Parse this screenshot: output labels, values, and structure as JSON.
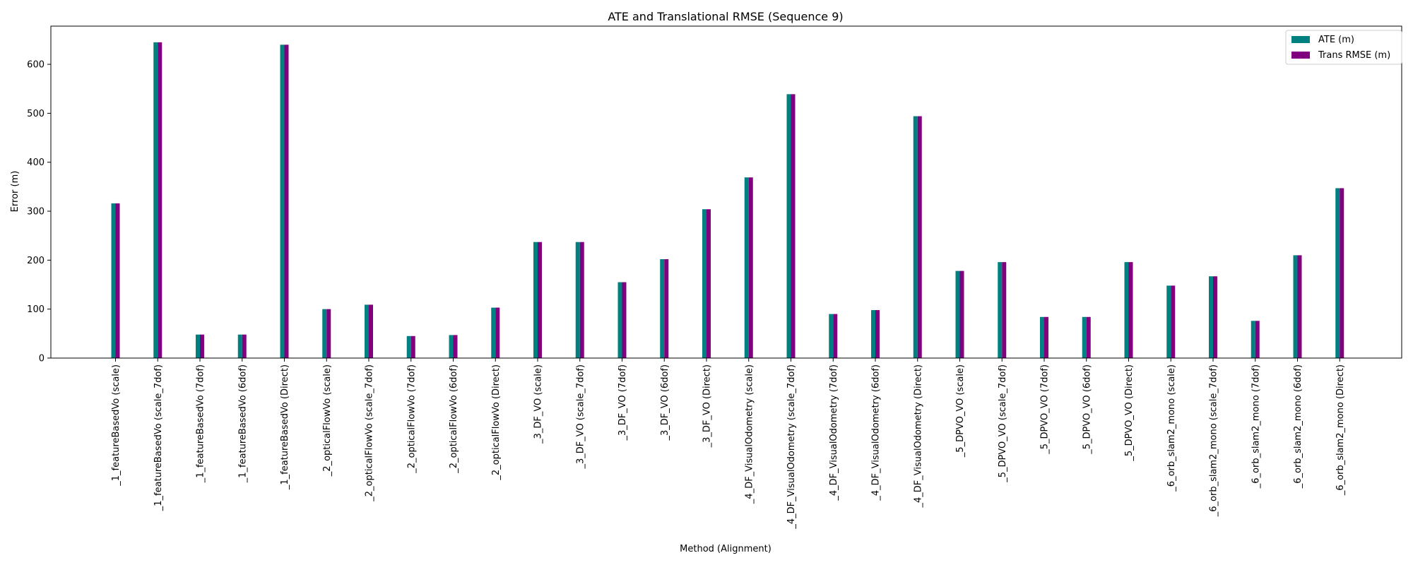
{
  "chart_data": {
    "type": "bar",
    "title": "ATE and Translational RMSE (Sequence 9)",
    "xlabel": "Method (Alignment)",
    "ylabel": "Error (m)",
    "ylim": [
      0,
      678
    ],
    "yticks": [
      0,
      100,
      200,
      300,
      400,
      500,
      600
    ],
    "grid": false,
    "legend_position": "top-right",
    "categories": [
      "_1_featureBasedVo (scale)",
      "_1_featureBasedVo (scale_7dof)",
      "_1_featureBasedVo (7dof)",
      "_1_featureBasedVo (6dof)",
      "_1_featureBasedVo (Direct)",
      "_2_opticalFlowVo (scale)",
      "_2_opticalFlowVo (scale_7dof)",
      "_2_opticalFlowVo (7dof)",
      "_2_opticalFlowVo (6dof)",
      "_2_opticalFlowVo (Direct)",
      "_3_DF_VO (scale)",
      "_3_DF_VO (scale_7dof)",
      "_3_DF_VO (7dof)",
      "_3_DF_VO (6dof)",
      "_3_DF_VO (Direct)",
      "_4_DF_VisualOdometry (scale)",
      "_4_DF_VisualOdometry (scale_7dof)",
      "_4_DF_VisualOdometry (7dof)",
      "_4_DF_VisualOdometry (6dof)",
      "_4_DF_VisualOdometry (Direct)",
      "_5_DPVO_VO (scale)",
      "_5_DPVO_VO (scale_7dof)",
      "_5_DPVO_VO (7dof)",
      "_5_DPVO_VO (6dof)",
      "_5_DPVO_VO (Direct)",
      "_6_orb_slam2_mono (scale)",
      "_6_orb_slam2_mono (scale_7dof)",
      "_6_orb_slam2_mono (7dof)",
      "_6_orb_slam2_mono (6dof)",
      "_6_orb_slam2_mono (Direct)"
    ],
    "series": [
      {
        "name": "ATE (m)",
        "color": "#008080",
        "values": [
          316,
          645,
          48,
          48,
          640,
          100,
          109,
          45,
          47,
          103,
          237,
          237,
          155,
          202,
          304,
          369,
          539,
          90,
          98,
          494,
          178,
          196,
          84,
          84,
          196,
          148,
          167,
          76,
          210,
          347
        ]
      },
      {
        "name": "Trans RMSE (m)",
        "color": "#800080",
        "values": [
          316,
          645,
          48,
          48,
          640,
          100,
          109,
          45,
          47,
          103,
          237,
          237,
          155,
          202,
          304,
          369,
          539,
          90,
          98,
          494,
          178,
          196,
          84,
          84,
          196,
          148,
          167,
          76,
          210,
          347
        ]
      }
    ]
  }
}
